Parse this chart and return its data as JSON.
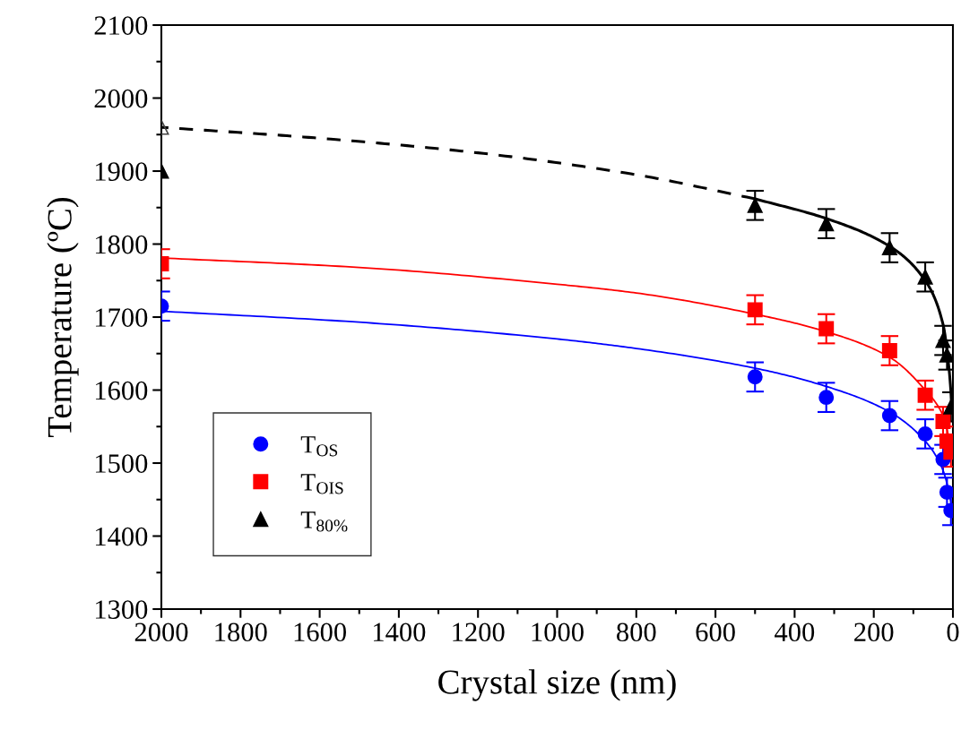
{
  "chart_data": {
    "type": "scatter",
    "xlabel": "Crystal size (nm)",
    "ylabel": "Temperature (ºC)",
    "xlim": [
      2000,
      0
    ],
    "xticks": [
      2000,
      1800,
      1600,
      1400,
      1200,
      1000,
      800,
      600,
      400,
      200,
      0
    ],
    "ylim": [
      1300,
      2100
    ],
    "yticks": [
      1300,
      1400,
      1500,
      1600,
      1700,
      1800,
      1900,
      2000,
      2100
    ],
    "grid": false,
    "legend": "bottom left",
    "series": [
      {
        "name": "T$_{OS}$",
        "marker": "circle",
        "color": "#0000ff",
        "x": [
          2000,
          500,
          320,
          160,
          70,
          25,
          15,
          5
        ],
        "values": [
          1715,
          1618,
          1590,
          1565,
          1540,
          1505,
          1460,
          1435
        ],
        "errors": [
          20,
          20,
          20,
          20,
          20,
          20,
          20,
          20
        ]
      },
      {
        "name": "T$_{OIS}$",
        "marker": "square",
        "color": "#ff0000",
        "x": [
          2000,
          500,
          320,
          160,
          70,
          25,
          15,
          5
        ],
        "values": [
          1773,
          1710,
          1684,
          1654,
          1593,
          1557,
          1530,
          1515
        ],
        "errors": [
          20,
          20,
          20,
          20,
          20,
          20,
          20,
          20
        ]
      },
      {
        "name": "T$_{80%}$",
        "marker": "triangle",
        "color": "#000000",
        "x": [
          2000,
          500,
          320,
          160,
          70,
          25,
          15,
          5
        ],
        "values": [
          1900,
          1853,
          1828,
          1795,
          1755,
          1668,
          1648,
          1577
        ],
        "errors": [
          null,
          20,
          20,
          20,
          20,
          20,
          20,
          20
        ]
      },
      {
        "marker": "triangle",
        "color": "#444444",
        "x": [
          2000
        ],
        "values": [
          1960
        ]
      },
      {
        "type": "line",
        "color": "#0000ff",
        "line_style": "solid",
        "x": [
          2000,
          1500,
          1000,
          800,
          500,
          320,
          160,
          70,
          25,
          10,
          3
        ],
        "values": [
          1708,
          1693,
          1670,
          1657,
          1630,
          1605,
          1570,
          1530,
          1490,
          1460,
          1440
        ]
      },
      {
        "type": "line",
        "color": "#ff0000",
        "line_style": "solid",
        "x": [
          2000,
          1500,
          1000,
          800,
          500,
          320,
          160,
          70,
          25,
          10,
          3
        ],
        "values": [
          1781,
          1768,
          1745,
          1733,
          1704,
          1680,
          1645,
          1600,
          1565,
          1535,
          1520
        ]
      },
      {
        "type": "line",
        "color": "#000000",
        "line_style": "solid",
        "x": [
          500,
          320,
          160,
          70,
          25,
          10,
          2
        ],
        "values": [
          1862,
          1835,
          1797,
          1750,
          1690,
          1630,
          1575
        ]
      },
      {
        "type": "line",
        "color": "#000000",
        "line_style": "dashed",
        "x": [
          2000,
          1600,
          1200,
          800,
          500
        ],
        "values": [
          1960,
          1945,
          1925,
          1895,
          1862
        ]
      }
    ]
  }
}
